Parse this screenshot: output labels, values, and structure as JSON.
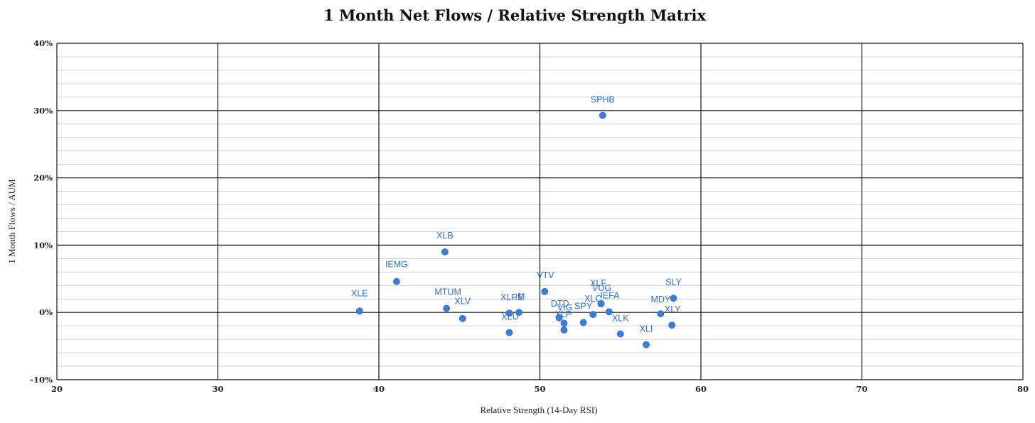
{
  "chart_data": {
    "type": "scatter",
    "title": "1 Month Net Flows / Relative Strength Matrix",
    "xlabel": "Relative Strength (14-Day RSI)",
    "ylabel": "1 Month Flows / AUM",
    "xlim": [
      20,
      80
    ],
    "ylim": [
      -10,
      40
    ],
    "x_ticks": [
      20,
      30,
      40,
      50,
      60,
      70,
      80
    ],
    "y_ticks": [
      -10,
      0,
      10,
      20,
      30,
      40
    ],
    "y_tick_labels": [
      "-10%",
      "0%",
      "10%",
      "20%",
      "30%",
      "40%"
    ],
    "grid": true,
    "point_color": "#3b7ddd",
    "label_color": "#2a6fd6",
    "points": [
      {
        "label": "XLE",
        "x": 38.8,
        "y": 0.2
      },
      {
        "label": "IEMG",
        "x": 41.1,
        "y": 4.6
      },
      {
        "label": "XLB",
        "x": 44.1,
        "y": 9.0
      },
      {
        "label": "MTUM",
        "x": 44.2,
        "y": 0.6
      },
      {
        "label": "XLV",
        "x": 45.2,
        "y": -0.9
      },
      {
        "label": "XLU",
        "x": 48.1,
        "y": -3.0
      },
      {
        "label": "XLRE",
        "x": 48.1,
        "y": -0.1
      },
      {
        "label": "M",
        "x": 48.7,
        "y": 0.0
      },
      {
        "label": "VTV",
        "x": 50.3,
        "y": 3.1
      },
      {
        "label": "DTD",
        "x": 51.2,
        "y": -0.8
      },
      {
        "label": "VIG",
        "x": 51.5,
        "y": -1.6
      },
      {
        "label": "XLP",
        "x": 51.5,
        "y": -2.6
      },
      {
        "label": "SPY",
        "x": 52.7,
        "y": -1.5
      },
      {
        "label": "XLC",
        "x": 53.3,
        "y": -0.3
      },
      {
        "label": "XLF",
        "x": 53.8,
        "y": 1.3
      },
      {
        "label": "VUG",
        "x": 53.8,
        "y": 1.3
      },
      {
        "label": "SPHB",
        "x": 53.9,
        "y": 29.3
      },
      {
        "label": "IEFA",
        "x": 54.3,
        "y": 0.1
      },
      {
        "label": "XLK",
        "x": 55.0,
        "y": -3.2
      },
      {
        "label": "XLI",
        "x": 56.6,
        "y": -4.8
      },
      {
        "label": "MDY",
        "x": 57.5,
        "y": -0.2
      },
      {
        "label": "XLY",
        "x": 58.2,
        "y": -1.9
      },
      {
        "label": "SLY",
        "x": 58.3,
        "y": 2.1
      }
    ]
  }
}
